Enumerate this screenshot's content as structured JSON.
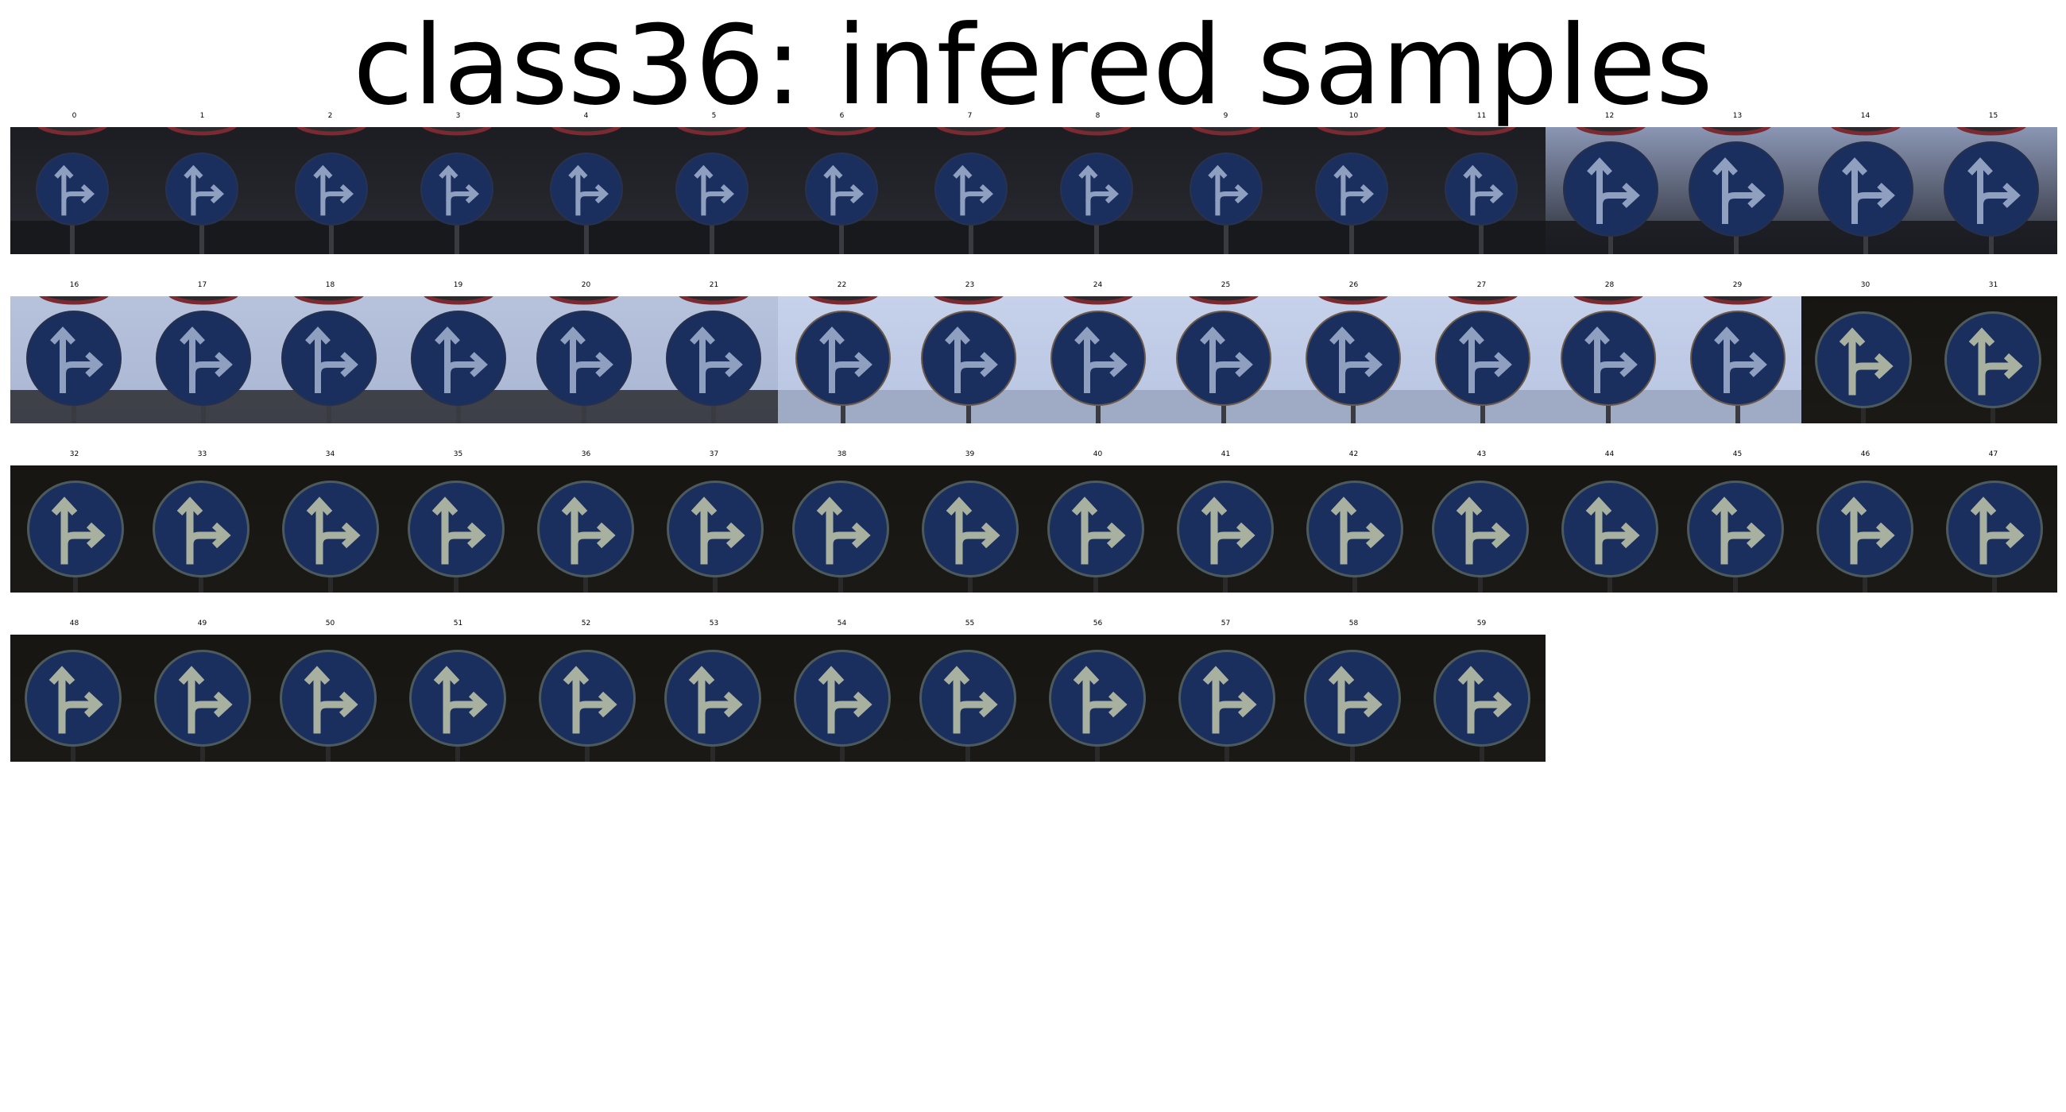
{
  "title": "class36: infered samples",
  "samples": [
    {
      "label": "0",
      "scene": "dark-trees"
    },
    {
      "label": "1",
      "scene": "dark-trees"
    },
    {
      "label": "2",
      "scene": "dark-trees"
    },
    {
      "label": "3",
      "scene": "dark-trees"
    },
    {
      "label": "4",
      "scene": "dark-trees"
    },
    {
      "label": "5",
      "scene": "dark-trees"
    },
    {
      "label": "6",
      "scene": "dark-trees"
    },
    {
      "label": "7",
      "scene": "dark-trees"
    },
    {
      "label": "8",
      "scene": "dark-trees"
    },
    {
      "label": "9",
      "scene": "dark-trees"
    },
    {
      "label": "10",
      "scene": "dark-trees"
    },
    {
      "label": "11",
      "scene": "dark-trees"
    },
    {
      "label": "12",
      "scene": "dusk-sky"
    },
    {
      "label": "13",
      "scene": "dusk-sky"
    },
    {
      "label": "14",
      "scene": "dusk-sky"
    },
    {
      "label": "15",
      "scene": "dusk-sky"
    },
    {
      "label": "16",
      "scene": "pale-sky"
    },
    {
      "label": "17",
      "scene": "pale-sky"
    },
    {
      "label": "18",
      "scene": "pale-sky"
    },
    {
      "label": "19",
      "scene": "pale-sky"
    },
    {
      "label": "20",
      "scene": "pale-sky"
    },
    {
      "label": "21",
      "scene": "pale-sky"
    },
    {
      "label": "22",
      "scene": "bright-sky"
    },
    {
      "label": "23",
      "scene": "bright-sky"
    },
    {
      "label": "24",
      "scene": "bright-sky"
    },
    {
      "label": "25",
      "scene": "bright-sky"
    },
    {
      "label": "26",
      "scene": "bright-sky"
    },
    {
      "label": "27",
      "scene": "bright-sky"
    },
    {
      "label": "28",
      "scene": "bright-sky"
    },
    {
      "label": "29",
      "scene": "bright-sky"
    },
    {
      "label": "30",
      "scene": "night"
    },
    {
      "label": "31",
      "scene": "night"
    },
    {
      "label": "32",
      "scene": "night"
    },
    {
      "label": "33",
      "scene": "night"
    },
    {
      "label": "34",
      "scene": "night"
    },
    {
      "label": "35",
      "scene": "night"
    },
    {
      "label": "36",
      "scene": "night"
    },
    {
      "label": "37",
      "scene": "night"
    },
    {
      "label": "38",
      "scene": "night"
    },
    {
      "label": "39",
      "scene": "night"
    },
    {
      "label": "40",
      "scene": "night"
    },
    {
      "label": "41",
      "scene": "night"
    },
    {
      "label": "42",
      "scene": "night"
    },
    {
      "label": "43",
      "scene": "night"
    },
    {
      "label": "44",
      "scene": "night"
    },
    {
      "label": "45",
      "scene": "night"
    },
    {
      "label": "46",
      "scene": "night"
    },
    {
      "label": "47",
      "scene": "night"
    },
    {
      "label": "48",
      "scene": "night"
    },
    {
      "label": "49",
      "scene": "night"
    },
    {
      "label": "50",
      "scene": "night"
    },
    {
      "label": "51",
      "scene": "night"
    },
    {
      "label": "52",
      "scene": "night"
    },
    {
      "label": "53",
      "scene": "night"
    },
    {
      "label": "54",
      "scene": "night"
    },
    {
      "label": "55",
      "scene": "night"
    },
    {
      "label": "56",
      "scene": "night"
    },
    {
      "label": "57",
      "scene": "night"
    },
    {
      "label": "58",
      "scene": "night"
    },
    {
      "label": "59",
      "scene": "night"
    }
  ],
  "colors": {
    "sign_blue": "#1b2f5e",
    "sign_rim_night": "#4d5a5c",
    "arrow_day": "#8f9fc0",
    "arrow_night": "#a8b0a0",
    "red_ring": "#7a2a30"
  }
}
